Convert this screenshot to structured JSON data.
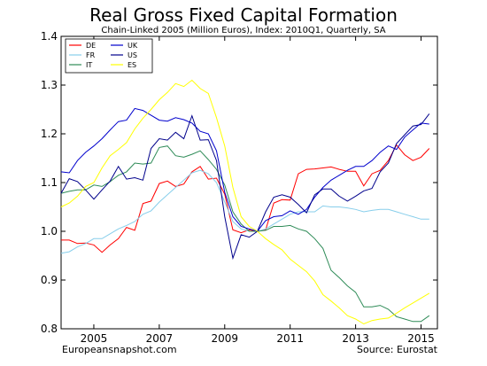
{
  "chart_data": {
    "type": "line",
    "title": "Real Gross Fixed Capital Formation",
    "subtitle": "Chain-Linked 2005 (Million Euros), Index: 2010Q1, Quarterly, SA",
    "xlabel": "",
    "ylabel": "",
    "xlim": [
      2004.0,
      2015.5
    ],
    "ylim": [
      0.8,
      1.4
    ],
    "xticks": [
      "2005",
      "2007",
      "2009",
      "2011",
      "2013",
      "2015"
    ],
    "yticks": [
      "0.8",
      "0.9",
      "1.0",
      "1.1",
      "1.2",
      "1.3",
      "1.4"
    ],
    "grid": false,
    "legend": "top-left",
    "footer_left": "Europeansnapshot.com",
    "footer_right": "Source: Eurostat",
    "x": [
      2004.0,
      2004.25,
      2004.5,
      2004.75,
      2005.0,
      2005.25,
      2005.5,
      2005.75,
      2006.0,
      2006.25,
      2006.5,
      2006.75,
      2007.0,
      2007.25,
      2007.5,
      2007.75,
      2008.0,
      2008.25,
      2008.5,
      2008.75,
      2009.0,
      2009.25,
      2009.5,
      2009.75,
      2010.0,
      2010.25,
      2010.5,
      2010.75,
      2011.0,
      2011.25,
      2011.5,
      2011.75,
      2012.0,
      2012.25,
      2012.5,
      2012.75,
      2013.0,
      2013.25,
      2013.5,
      2013.75,
      2014.0,
      2014.25,
      2014.5,
      2014.75,
      2015.0,
      2015.25
    ],
    "series": [
      {
        "name": "DE",
        "color": "#ff0000",
        "values": [
          0.982,
          0.982,
          0.975,
          0.976,
          0.972,
          0.957,
          0.972,
          0.985,
          1.008,
          1.002,
          1.057,
          1.062,
          1.098,
          1.103,
          1.092,
          1.097,
          1.122,
          1.133,
          1.107,
          1.109,
          1.076,
          1.003,
          0.997,
          1.003,
          1.0,
          1.003,
          1.058,
          1.065,
          1.064,
          1.118,
          1.127,
          1.128,
          1.13,
          1.132,
          1.127,
          1.123,
          1.123,
          1.093,
          1.118,
          1.125,
          1.145,
          1.177,
          1.157,
          1.145,
          1.152,
          1.17
        ]
      },
      {
        "name": "FR",
        "color": "#87ceeb",
        "values": [
          0.955,
          0.958,
          0.968,
          0.975,
          0.985,
          0.985,
          0.995,
          1.005,
          1.012,
          1.02,
          1.035,
          1.042,
          1.06,
          1.075,
          1.09,
          1.105,
          1.12,
          1.125,
          1.118,
          1.1,
          1.06,
          1.02,
          1.005,
          1.0,
          1.0,
          1.005,
          1.015,
          1.025,
          1.035,
          1.04,
          1.04,
          1.04,
          1.052,
          1.05,
          1.05,
          1.048,
          1.045,
          1.04,
          1.043,
          1.045,
          1.045,
          1.04,
          1.035,
          1.03,
          1.025,
          1.025
        ]
      },
      {
        "name": "IT",
        "color": "#2e8b57",
        "values": [
          1.078,
          1.082,
          1.085,
          1.085,
          1.095,
          1.092,
          1.102,
          1.115,
          1.122,
          1.14,
          1.138,
          1.14,
          1.172,
          1.175,
          1.155,
          1.152,
          1.158,
          1.165,
          1.147,
          1.127,
          1.095,
          1.04,
          1.015,
          1.0,
          1.0,
          1.002,
          1.01,
          1.01,
          1.012,
          1.005,
          1.0,
          0.985,
          0.965,
          0.92,
          0.905,
          0.888,
          0.875,
          0.845,
          0.845,
          0.848,
          0.84,
          0.825,
          0.82,
          0.815,
          0.815,
          0.827
        ]
      },
      {
        "name": "UK",
        "color": "#0000cd",
        "values": [
          1.122,
          1.12,
          1.145,
          1.162,
          1.175,
          1.19,
          1.208,
          1.225,
          1.228,
          1.252,
          1.248,
          1.238,
          1.228,
          1.226,
          1.233,
          1.229,
          1.222,
          1.205,
          1.2,
          1.165,
          1.08,
          1.03,
          1.01,
          1.005,
          1.0,
          1.022,
          1.03,
          1.032,
          1.042,
          1.035,
          1.045,
          1.07,
          1.09,
          1.105,
          1.115,
          1.125,
          1.133,
          1.133,
          1.145,
          1.162,
          1.175,
          1.168,
          1.193,
          1.208,
          1.222,
          1.22
        ]
      },
      {
        "name": "US",
        "color": "#00008b",
        "values": [
          1.078,
          1.108,
          1.102,
          1.085,
          1.066,
          1.085,
          1.103,
          1.133,
          1.107,
          1.11,
          1.105,
          1.17,
          1.19,
          1.187,
          1.203,
          1.19,
          1.237,
          1.187,
          1.188,
          1.145,
          1.03,
          0.945,
          0.993,
          0.988,
          1.0,
          1.04,
          1.07,
          1.075,
          1.07,
          1.055,
          1.038,
          1.075,
          1.087,
          1.087,
          1.072,
          1.062,
          1.072,
          1.083,
          1.088,
          1.122,
          1.14,
          1.18,
          1.198,
          1.216,
          1.219,
          1.241
        ]
      },
      {
        "name": "ES",
        "color": "#ffff00",
        "values": [
          1.05,
          1.058,
          1.072,
          1.092,
          1.1,
          1.13,
          1.155,
          1.168,
          1.182,
          1.21,
          1.232,
          1.25,
          1.27,
          1.285,
          1.303,
          1.297,
          1.31,
          1.293,
          1.283,
          1.233,
          1.175,
          1.09,
          1.03,
          1.01,
          1.0,
          0.985,
          0.973,
          0.962,
          0.943,
          0.93,
          0.917,
          0.898,
          0.87,
          0.857,
          0.843,
          0.827,
          0.82,
          0.81,
          0.817,
          0.82,
          0.822,
          0.832,
          0.843,
          0.853,
          0.863,
          0.873
        ]
      }
    ]
  }
}
